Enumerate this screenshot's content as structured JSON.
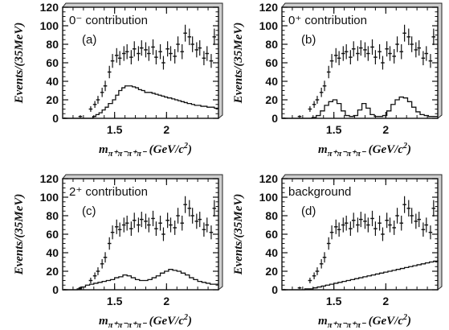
{
  "figure": {
    "xlabel_main": "m",
    "xlabel_sub": "π⁺π⁻π⁺π⁻",
    "xlabel_units": " (GeV/c",
    "xlabel_units_sup": "2",
    "xlabel_units_close": ")",
    "ylabel": "Events/(35MeV)"
  },
  "chart_data": [
    {
      "type": "line",
      "title": "0⁻ contribution",
      "panel_label": "(a)",
      "xlim": [
        1.0,
        2.5
      ],
      "ylim": [
        0,
        120
      ],
      "x_ticks": [
        1.5,
        2
      ],
      "x_tick_labels": [
        "1.5",
        "2"
      ],
      "y_ticks": [
        0,
        20,
        40,
        60,
        80,
        100,
        120
      ],
      "series": [
        {
          "role": "data",
          "x": [
            1.02,
            1.17,
            1.27,
            1.31,
            1.34,
            1.38,
            1.41,
            1.45,
            1.48,
            1.52,
            1.55,
            1.59,
            1.62,
            1.66,
            1.69,
            1.73,
            1.76,
            1.8,
            1.83,
            1.87,
            1.9,
            1.94,
            1.97,
            2.01,
            2.04,
            2.08,
            2.11,
            2.15,
            2.18,
            2.22,
            2.25,
            2.29,
            2.32,
            2.36,
            2.39,
            2.43,
            2.46
          ],
          "y": [
            0,
            2,
            10,
            15,
            20,
            28,
            35,
            50,
            62,
            68,
            65,
            70,
            72,
            66,
            75,
            70,
            76,
            74,
            70,
            77,
            66,
            72,
            60,
            75,
            70,
            67,
            80,
            72,
            92,
            88,
            80,
            74,
            76,
            65,
            70,
            62,
            88
          ]
        },
        {
          "role": "fit",
          "x": [
            1.0,
            1.29,
            1.32,
            1.35,
            1.38,
            1.41,
            1.44,
            1.48,
            1.51,
            1.54,
            1.57,
            1.6,
            1.63,
            1.67,
            1.7,
            1.73,
            1.76,
            1.79,
            1.82,
            1.86,
            1.89,
            1.92,
            1.95,
            1.98,
            2.01,
            2.05,
            2.08,
            2.11,
            2.14,
            2.17,
            2.2,
            2.24,
            2.27,
            2.3,
            2.33,
            2.36,
            2.39,
            2.43,
            2.46,
            2.5
          ],
          "y": [
            0,
            2,
            4,
            6,
            9,
            12,
            16,
            20,
            25,
            30,
            33,
            35,
            35,
            34,
            33,
            31,
            30,
            28,
            28,
            27,
            26,
            25,
            24,
            23,
            22,
            21,
            20,
            19,
            18,
            17,
            16,
            15,
            14,
            14,
            13,
            13,
            12,
            12,
            11,
            11
          ]
        }
      ]
    },
    {
      "type": "line",
      "title": "0⁺ contribution",
      "panel_label": "(b)",
      "xlim": [
        1.0,
        2.5
      ],
      "ylim": [
        0,
        120
      ],
      "x_ticks": [
        1.5,
        2
      ],
      "x_tick_labels": [
        "1.5",
        "2"
      ],
      "y_ticks": [
        0,
        20,
        40,
        60,
        80,
        100,
        120
      ],
      "series": [
        {
          "role": "data",
          "x": [
            1.02,
            1.17,
            1.27,
            1.31,
            1.34,
            1.38,
            1.41,
            1.45,
            1.48,
            1.52,
            1.55,
            1.59,
            1.62,
            1.66,
            1.69,
            1.73,
            1.76,
            1.8,
            1.83,
            1.87,
            1.9,
            1.94,
            1.97,
            2.01,
            2.04,
            2.08,
            2.11,
            2.15,
            2.18,
            2.22,
            2.25,
            2.29,
            2.32,
            2.36,
            2.39,
            2.43,
            2.46
          ],
          "y": [
            0,
            2,
            10,
            15,
            20,
            28,
            35,
            50,
            62,
            68,
            65,
            70,
            72,
            66,
            75,
            70,
            76,
            74,
            70,
            77,
            66,
            72,
            60,
            75,
            70,
            67,
            80,
            72,
            92,
            88,
            80,
            74,
            76,
            65,
            70,
            62,
            88
          ]
        },
        {
          "role": "fit",
          "x": [
            1.0,
            1.29,
            1.33,
            1.37,
            1.41,
            1.45,
            1.49,
            1.53,
            1.57,
            1.61,
            1.65,
            1.69,
            1.73,
            1.77,
            1.81,
            1.85,
            1.89,
            1.93,
            1.97,
            2.01,
            2.05,
            2.09,
            2.13,
            2.17,
            2.21,
            2.25,
            2.29,
            2.33,
            2.37,
            2.41,
            2.45,
            2.5
          ],
          "y": [
            0,
            1,
            3,
            8,
            14,
            18,
            20,
            16,
            8,
            3,
            2,
            3,
            9,
            16,
            11,
            4,
            2,
            2,
            3,
            8,
            15,
            20,
            23,
            22,
            18,
            12,
            7,
            4,
            3,
            2,
            2,
            2
          ]
        }
      ]
    },
    {
      "type": "line",
      "title": "2⁺ contribution",
      "panel_label": "(c)",
      "xlim": [
        1.0,
        2.5
      ],
      "ylim": [
        0,
        120
      ],
      "x_ticks": [
        1.5,
        2
      ],
      "x_tick_labels": [
        "1.5",
        "2"
      ],
      "y_ticks": [
        0,
        20,
        40,
        60,
        80,
        100,
        120
      ],
      "series": [
        {
          "role": "data",
          "x": [
            1.02,
            1.17,
            1.27,
            1.31,
            1.34,
            1.38,
            1.41,
            1.45,
            1.48,
            1.52,
            1.55,
            1.59,
            1.62,
            1.66,
            1.69,
            1.73,
            1.76,
            1.8,
            1.83,
            1.87,
            1.9,
            1.94,
            1.97,
            2.01,
            2.04,
            2.08,
            2.11,
            2.15,
            2.18,
            2.22,
            2.25,
            2.29,
            2.32,
            2.36,
            2.39,
            2.43,
            2.46
          ],
          "y": [
            0,
            2,
            10,
            15,
            20,
            28,
            35,
            50,
            62,
            68,
            65,
            70,
            72,
            66,
            75,
            70,
            76,
            74,
            70,
            77,
            66,
            72,
            60,
            75,
            70,
            67,
            80,
            72,
            92,
            88,
            80,
            74,
            76,
            65,
            70,
            62,
            88
          ]
        },
        {
          "role": "fit",
          "x": [
            1.0,
            1.14,
            1.18,
            1.22,
            1.26,
            1.3,
            1.34,
            1.38,
            1.42,
            1.46,
            1.5,
            1.54,
            1.58,
            1.62,
            1.66,
            1.7,
            1.74,
            1.78,
            1.82,
            1.86,
            1.9,
            1.94,
            1.98,
            2.02,
            2.06,
            2.1,
            2.14,
            2.18,
            2.22,
            2.26,
            2.3,
            2.34,
            2.38,
            2.42,
            2.46,
            2.5
          ],
          "y": [
            0,
            1,
            3,
            5,
            6,
            7,
            8,
            9,
            10,
            11,
            13,
            14,
            16,
            15,
            13,
            11,
            10,
            10,
            11,
            13,
            15,
            18,
            20,
            22,
            21,
            20,
            18,
            16,
            13,
            11,
            9,
            8,
            7,
            6,
            6,
            6
          ]
        }
      ]
    },
    {
      "type": "line",
      "title": "background",
      "panel_label": "(d)",
      "xlim": [
        1.0,
        2.5
      ],
      "ylim": [
        0,
        120
      ],
      "x_ticks": [
        1.5,
        2
      ],
      "x_tick_labels": [
        "1.5",
        "2"
      ],
      "y_ticks": [
        0,
        20,
        40,
        60,
        80,
        100,
        120
      ],
      "series": [
        {
          "role": "data",
          "x": [
            1.02,
            1.17,
            1.27,
            1.31,
            1.34,
            1.38,
            1.41,
            1.45,
            1.48,
            1.52,
            1.55,
            1.59,
            1.62,
            1.66,
            1.69,
            1.73,
            1.76,
            1.8,
            1.83,
            1.87,
            1.9,
            1.94,
            1.97,
            2.01,
            2.04,
            2.08,
            2.11,
            2.15,
            2.18,
            2.22,
            2.25,
            2.29,
            2.32,
            2.36,
            2.39,
            2.43,
            2.46
          ],
          "y": [
            0,
            2,
            10,
            15,
            20,
            28,
            35,
            50,
            62,
            68,
            65,
            70,
            72,
            66,
            75,
            70,
            76,
            74,
            70,
            77,
            66,
            72,
            60,
            75,
            70,
            67,
            80,
            72,
            92,
            88,
            80,
            74,
            76,
            65,
            70,
            62,
            88
          ]
        },
        {
          "role": "fit",
          "x": [
            1.0,
            1.18,
            1.22,
            1.26,
            1.3,
            1.34,
            1.38,
            1.42,
            1.46,
            1.5,
            1.54,
            1.58,
            1.62,
            1.66,
            1.7,
            1.74,
            1.78,
            1.82,
            1.86,
            1.9,
            1.94,
            1.98,
            2.02,
            2.06,
            2.1,
            2.14,
            2.18,
            2.22,
            2.26,
            2.3,
            2.34,
            2.38,
            2.42,
            2.46,
            2.5
          ],
          "y": [
            0,
            0,
            1,
            1,
            2,
            3,
            4,
            5,
            6,
            7,
            8,
            9,
            10,
            11,
            12,
            13,
            14,
            15,
            16,
            17,
            18,
            19,
            20,
            21,
            22,
            23,
            24,
            25,
            26,
            27,
            28,
            29,
            30,
            31,
            32
          ]
        }
      ]
    }
  ]
}
